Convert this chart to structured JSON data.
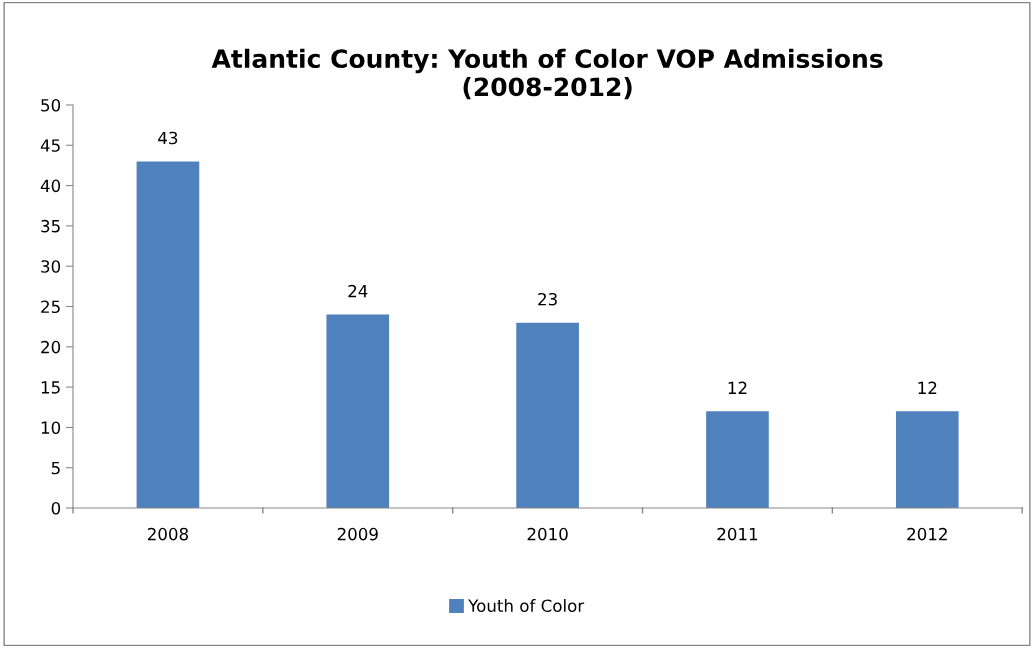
{
  "chart_data": {
    "type": "bar",
    "title": "Atlantic County: Youth of Color VOP Admissions\n(2008-2012)",
    "categories": [
      "2008",
      "2009",
      "2010",
      "2011",
      "2012"
    ],
    "series": [
      {
        "name": "Youth of Color",
        "color": "#4f81bd",
        "values": [
          43,
          24,
          23,
          12,
          12
        ]
      }
    ],
    "ylim": [
      0,
      50
    ],
    "yticks": [
      0,
      5,
      10,
      15,
      20,
      25,
      30,
      35,
      40,
      45,
      50
    ],
    "data_labels": true,
    "grid": false,
    "legend": "bottom"
  }
}
